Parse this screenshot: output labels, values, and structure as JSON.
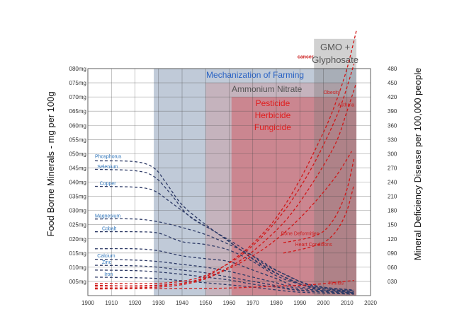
{
  "chart_data": {
    "type": "line",
    "title": "",
    "xlabel": "",
    "ylabel_left": "Food Borne Minerals - mg per 100g",
    "ylabel_right": "Mineral Deficiency Disease per 100,000 people",
    "x_ticks": [
      "1900",
      "1910",
      "1920",
      "1930",
      "1940",
      "1950",
      "1960",
      "1970",
      "1980",
      "1990",
      "2000",
      "2010",
      "2020"
    ],
    "xlim": [
      1900,
      2020
    ],
    "ylim_left": [
      0,
      80
    ],
    "ylim_right": [
      0,
      480
    ],
    "left_ticks": [
      {
        "v": 5,
        "label": "005mg"
      },
      {
        "v": 10,
        "label": "010mg"
      },
      {
        "v": 15,
        "label": "015mg"
      },
      {
        "v": 20,
        "label": "020mg"
      },
      {
        "v": 25,
        "label": "025mg"
      },
      {
        "v": 30,
        "label": "030mg"
      },
      {
        "v": 35,
        "label": "035mg"
      },
      {
        "v": 40,
        "label": "040mg"
      },
      {
        "v": 45,
        "label": "045mg"
      },
      {
        "v": 50,
        "label": "050mg"
      },
      {
        "v": 55,
        "label": "055mg"
      },
      {
        "v": 60,
        "label": "060mg"
      },
      {
        "v": 65,
        "label": "065mg"
      },
      {
        "v": 70,
        "label": "070mg"
      },
      {
        "v": 75,
        "label": "075mg"
      },
      {
        "v": 80,
        "label": "080mg"
      }
    ],
    "right_ticks": [
      {
        "v": 30,
        "label": "030"
      },
      {
        "v": 60,
        "label": "060"
      },
      {
        "v": 90,
        "label": "090"
      },
      {
        "v": 120,
        "label": "120"
      },
      {
        "v": 150,
        "label": "150"
      },
      {
        "v": 180,
        "label": "180"
      },
      {
        "v": 210,
        "label": "210"
      },
      {
        "v": 240,
        "label": "240"
      },
      {
        "v": 270,
        "label": "270"
      },
      {
        "v": 300,
        "label": "300"
      },
      {
        "v": 330,
        "label": "330"
      },
      {
        "v": 360,
        "label": "360"
      },
      {
        "v": 390,
        "label": "390"
      },
      {
        "v": 420,
        "label": "420"
      },
      {
        "v": 450,
        "label": "450"
      },
      {
        "v": 480,
        "label": "480"
      }
    ],
    "grid": true,
    "eras": [
      {
        "label": "Mechanization of Farming",
        "x_start": 1928,
        "x_end": 2014,
        "y_top": 80,
        "fill": "#8c9fb8",
        "opacity": 0.55,
        "text_color": "#2a63c4",
        "font_size": 12
      },
      {
        "label": "Ammonium Nitrate",
        "x_start": 1950,
        "x_end": 2014,
        "y_top": 75,
        "fill": "#c8a1a7",
        "opacity": 0.55,
        "text_color": "#555555",
        "font_size": 12
      },
      {
        "label": "Pesticide\nHerbicide\nFungicide",
        "x_start": 1961,
        "x_end": 2014,
        "y_top": 70,
        "fill": "#d0606c",
        "opacity": 0.55,
        "text_color": "#e01e1e",
        "font_size": 12
      },
      {
        "label": "GMO +\nGlyphosate",
        "x_start": 1996,
        "x_end": 2014,
        "y_top": 90.5,
        "fill": "#7a7a7a",
        "opacity": 0.35,
        "text_color": "#555555",
        "font_size": 13
      }
    ],
    "mineral_series": [
      {
        "name": "Phosphorus",
        "values": [
          [
            1903,
            47.5
          ],
          [
            1920,
            47.2
          ],
          [
            1928,
            45
          ],
          [
            1933,
            40
          ],
          [
            1940,
            32
          ],
          [
            1950,
            25
          ],
          [
            1960,
            19
          ],
          [
            1970,
            13
          ],
          [
            1980,
            8
          ],
          [
            1990,
            4
          ],
          [
            2000,
            2
          ],
          [
            2013,
            1.5
          ]
        ]
      },
      {
        "name": "Selenium",
        "values": [
          [
            1903,
            44.5
          ],
          [
            1920,
            44
          ],
          [
            1928,
            42
          ],
          [
            1935,
            36
          ],
          [
            1943,
            28
          ],
          [
            1955,
            22
          ],
          [
            1965,
            16
          ],
          [
            1975,
            10
          ],
          [
            1985,
            6
          ],
          [
            1995,
            3
          ],
          [
            2013,
            1.5
          ]
        ]
      },
      {
        "name": "Copper",
        "values": [
          [
            1903,
            38.5
          ],
          [
            1920,
            38.2
          ],
          [
            1928,
            37
          ],
          [
            1935,
            33
          ],
          [
            1945,
            27
          ],
          [
            1955,
            22
          ],
          [
            1965,
            17
          ],
          [
            1975,
            11
          ],
          [
            1985,
            7
          ],
          [
            1995,
            3.5
          ],
          [
            2013,
            1.8
          ]
        ]
      },
      {
        "name": "Magnesium",
        "values": [
          [
            1903,
            27
          ],
          [
            1920,
            27
          ],
          [
            1930,
            26
          ],
          [
            1940,
            24
          ],
          [
            1950,
            21.5
          ],
          [
            1960,
            18
          ],
          [
            1970,
            14
          ],
          [
            1980,
            9
          ],
          [
            1990,
            5
          ],
          [
            2000,
            3
          ],
          [
            2013,
            2
          ]
        ]
      },
      {
        "name": "Cobalt",
        "values": [
          [
            1903,
            22.5
          ],
          [
            1920,
            22.5
          ],
          [
            1930,
            22
          ],
          [
            1940,
            19
          ],
          [
            1950,
            18
          ],
          [
            1960,
            16
          ],
          [
            1970,
            12
          ],
          [
            1980,
            7
          ],
          [
            1990,
            4
          ],
          [
            2000,
            2.5
          ],
          [
            2013,
            1.5
          ]
        ]
      },
      {
        "name": "",
        "values": [
          [
            1903,
            16.5
          ],
          [
            1920,
            16.5
          ],
          [
            1930,
            15.8
          ],
          [
            1940,
            14
          ],
          [
            1950,
            13
          ],
          [
            1960,
            12
          ],
          [
            1970,
            9
          ],
          [
            1980,
            6
          ],
          [
            1990,
            3
          ],
          [
            2013,
            1
          ]
        ]
      },
      {
        "name": "Calcium",
        "values": [
          [
            1903,
            12.8
          ],
          [
            1920,
            12.5
          ],
          [
            1930,
            12
          ],
          [
            1940,
            11
          ],
          [
            1950,
            10
          ],
          [
            1960,
            8.5
          ],
          [
            1970,
            6.5
          ],
          [
            1980,
            4.5
          ],
          [
            1990,
            2.5
          ],
          [
            2013,
            1
          ]
        ]
      },
      {
        "name": "Zinc",
        "values": [
          [
            1903,
            10.7
          ],
          [
            1920,
            10.5
          ],
          [
            1930,
            10
          ],
          [
            1940,
            9
          ],
          [
            1950,
            8
          ],
          [
            1960,
            6.5
          ],
          [
            1970,
            5
          ],
          [
            1980,
            3.5
          ],
          [
            1990,
            2
          ],
          [
            2013,
            0.8
          ]
        ]
      },
      {
        "name": "",
        "values": [
          [
            1903,
            9
          ],
          [
            1920,
            8.8
          ],
          [
            1930,
            8.3
          ],
          [
            1940,
            7.5
          ],
          [
            1950,
            6.5
          ],
          [
            1960,
            5.5
          ],
          [
            1970,
            4
          ],
          [
            1980,
            3
          ],
          [
            1990,
            1.8
          ],
          [
            2013,
            0.6
          ]
        ]
      },
      {
        "name": "Iron",
        "values": [
          [
            1903,
            6.5
          ],
          [
            1920,
            6.3
          ],
          [
            1930,
            6
          ],
          [
            1940,
            5.2
          ],
          [
            1950,
            4.5
          ],
          [
            1960,
            3.8
          ],
          [
            1970,
            3
          ],
          [
            1980,
            2
          ],
          [
            1990,
            1.2
          ],
          [
            2013,
            0.5
          ]
        ]
      }
    ],
    "disease_series": [
      {
        "name": "cancer",
        "values": [
          [
            1903,
            22
          ],
          [
            1925,
            20
          ],
          [
            1940,
            26
          ],
          [
            1950,
            40
          ],
          [
            1960,
            70
          ],
          [
            1970,
            110
          ],
          [
            1980,
            165
          ],
          [
            1990,
            245
          ],
          [
            2000,
            345
          ],
          [
            2005,
            405
          ],
          [
            2010,
            480
          ],
          [
            2014,
            560
          ]
        ]
      },
      {
        "name": "Obesity",
        "values": [
          [
            1903,
            26
          ],
          [
            1930,
            26
          ],
          [
            1945,
            35
          ],
          [
            1955,
            55
          ],
          [
            1965,
            85
          ],
          [
            1975,
            130
          ],
          [
            1985,
            190
          ],
          [
            1995,
            270
          ],
          [
            2003,
            350
          ],
          [
            2008,
            410
          ],
          [
            2013,
            490
          ]
        ]
      },
      {
        "name": "Asthma",
        "values": [
          [
            1903,
            20
          ],
          [
            1930,
            22
          ],
          [
            1945,
            30
          ],
          [
            1955,
            48
          ],
          [
            1965,
            75
          ],
          [
            1975,
            115
          ],
          [
            1985,
            165
          ],
          [
            1995,
            235
          ],
          [
            2005,
            320
          ],
          [
            2010,
            390
          ],
          [
            2014,
            450
          ]
        ]
      },
      {
        "name": "",
        "values": [
          [
            1903,
            16
          ],
          [
            1930,
            18
          ],
          [
            1945,
            28
          ],
          [
            1955,
            46
          ],
          [
            1965,
            70
          ],
          [
            1975,
            100
          ],
          [
            1985,
            140
          ],
          [
            1995,
            190
          ],
          [
            2005,
            250
          ],
          [
            2012,
            305
          ]
        ]
      },
      {
        "name": "Bone Deformities",
        "values": [
          [
            1983,
            112
          ],
          [
            1990,
            118
          ],
          [
            1996,
            126
          ],
          [
            2001,
            140
          ],
          [
            2006,
            175
          ],
          [
            2010,
            225
          ],
          [
            2013,
            290
          ]
        ]
      },
      {
        "name": "Heart Conditions",
        "values": [
          [
            1983,
            90
          ],
          [
            1990,
            97
          ],
          [
            1996,
            105
          ],
          [
            2001,
            115
          ],
          [
            2006,
            140
          ],
          [
            2010,
            180
          ],
          [
            2013,
            235
          ]
        ]
      },
      {
        "name": "Tinnitis",
        "values": [
          [
            1903,
            14
          ],
          [
            1940,
            15
          ],
          [
            1960,
            16
          ],
          [
            1980,
            20
          ],
          [
            1995,
            23
          ],
          [
            2005,
            28
          ],
          [
            2013,
            32
          ]
        ]
      }
    ],
    "mineral_labels": [
      {
        "text": "Phosphorus",
        "x": 1903,
        "y": 48.5
      },
      {
        "text": "Selenium",
        "x": 1904,
        "y": 44.8
      },
      {
        "text": "Copper",
        "x": 1905,
        "y": 39
      },
      {
        "text": "Magnesium",
        "x": 1903,
        "y": 27.5
      },
      {
        "text": "Cobalt",
        "x": 1906,
        "y": 23
      },
      {
        "text": "Calcium",
        "x": 1904,
        "y": 13.5
      },
      {
        "text": "Zinc",
        "x": 1906,
        "y": 11.2
      },
      {
        "text": "Iron",
        "x": 1907,
        "y": 7
      }
    ],
    "disease_labels": [
      {
        "text": "cancer",
        "x": 1989,
        "y": 502
      },
      {
        "text": "Obesity",
        "x": 2000,
        "y": 426
      },
      {
        "text": "Asthma",
        "x": 2006,
        "y": 400
      },
      {
        "text": "Bone Deformities",
        "x": 1982,
        "y": 128
      },
      {
        "text": "Heart Conditions",
        "x": 1988,
        "y": 105
      },
      {
        "text": "Tinnitis",
        "x": 2002,
        "y": 23
      }
    ],
    "colors": {
      "grid": "#4a4a4a",
      "plot_bg": "#ffffff",
      "mineral_line": "#2d3a66",
      "mineral_label": "#2b72b8",
      "disease_line": "#d01818",
      "disease_label": "#cc1f1f",
      "axis_text": "#333333"
    }
  }
}
